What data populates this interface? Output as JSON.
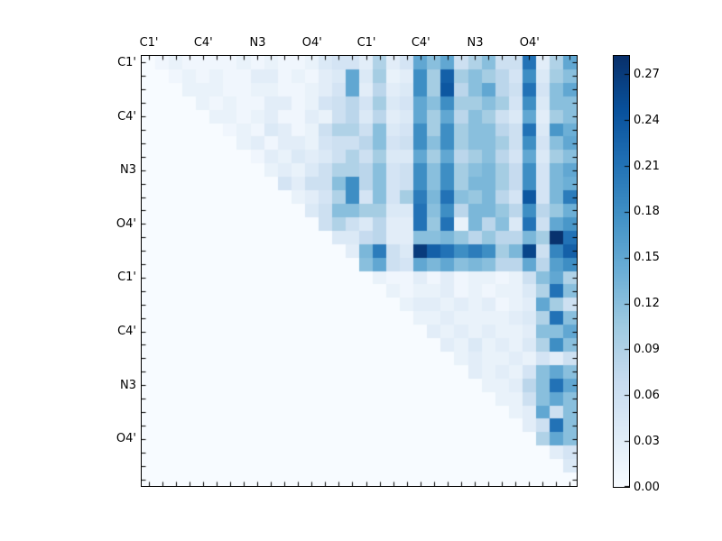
{
  "chart_data": {
    "type": "heatmap",
    "title": "",
    "xlabel": "",
    "ylabel": "",
    "n": 32,
    "x_tick_labels": [
      "C1'",
      "C4'",
      "N3",
      "O4'",
      "C1'",
      "C4'",
      "N3",
      "O4'"
    ],
    "y_tick_labels": [
      "C1'",
      "C4'",
      "N3",
      "O4'",
      "C1'",
      "C4'",
      "N3",
      "O4'"
    ],
    "tick_label_rows": [
      0,
      4,
      8,
      12,
      16,
      20,
      24,
      28
    ],
    "vmin": 0.0,
    "vmax": 0.282,
    "colormap": "Blues",
    "colormap_anchors": [
      "#f7fbff",
      "#deebf7",
      "#c6dbef",
      "#9ecae1",
      "#6baed6",
      "#4292c6",
      "#2171b5",
      "#08519c",
      "#08306b"
    ],
    "colorbar_tick_values": [
      0.0,
      0.03,
      0.06,
      0.09,
      0.12,
      0.15,
      0.18,
      0.21,
      0.24,
      0.27
    ],
    "colorbar_tick_labels": [
      "0.00",
      "0.03",
      "0.06",
      "0.09",
      "0.12",
      "0.15",
      "0.18",
      "0.21",
      "0.24",
      "0.27"
    ],
    "legend": "none",
    "grid": false,
    "matrix": [
      [
        0,
        0.01,
        0.02,
        0.01,
        0.01,
        0.01,
        0.01,
        0.02,
        0.01,
        0.02,
        0.01,
        0.01,
        0.02,
        0.04,
        0.05,
        0.05,
        0.03,
        0.09,
        0.03,
        0.05,
        0.15,
        0.12,
        0.15,
        0.06,
        0.09,
        0.12,
        0.06,
        0.06,
        0.21,
        0.03,
        0.09,
        0.15
      ],
      [
        0,
        0,
        0.01,
        0.02,
        0.01,
        0.02,
        0.01,
        0.01,
        0.03,
        0.03,
        0.01,
        0.02,
        0.01,
        0.03,
        0.04,
        0.15,
        0.04,
        0.1,
        0.02,
        0.03,
        0.18,
        0.1,
        0.23,
        0.1,
        0.12,
        0.1,
        0.08,
        0.05,
        0.18,
        0.04,
        0.1,
        0.12
      ],
      [
        0,
        0,
        0,
        0.02,
        0.02,
        0.02,
        0.01,
        0.01,
        0.02,
        0.02,
        0.01,
        0.01,
        0.02,
        0.03,
        0.05,
        0.15,
        0.03,
        0.08,
        0.03,
        0.04,
        0.18,
        0.1,
        0.24,
        0.08,
        0.12,
        0.15,
        0.08,
        0.06,
        0.21,
        0.05,
        0.12,
        0.15
      ],
      [
        0,
        0,
        0,
        0,
        0.02,
        0.01,
        0.02,
        0.01,
        0.01,
        0.03,
        0.03,
        0.01,
        0.02,
        0.05,
        0.06,
        0.08,
        0.05,
        0.1,
        0.04,
        0.05,
        0.15,
        0.12,
        0.18,
        0.1,
        0.1,
        0.12,
        0.1,
        0.05,
        0.18,
        0.04,
        0.12,
        0.12
      ],
      [
        0,
        0,
        0,
        0,
        0,
        0.02,
        0.02,
        0.01,
        0.02,
        0.03,
        0.01,
        0.01,
        0.03,
        0.02,
        0.06,
        0.08,
        0.04,
        0.08,
        0.03,
        0.04,
        0.15,
        0.1,
        0.15,
        0.08,
        0.12,
        0.1,
        0.06,
        0.04,
        0.15,
        0.03,
        0.1,
        0.12
      ],
      [
        0,
        0,
        0,
        0,
        0,
        0,
        0.01,
        0.02,
        0.01,
        0.04,
        0.03,
        0.01,
        0.02,
        0.06,
        0.09,
        0.09,
        0.06,
        0.12,
        0.04,
        0.05,
        0.18,
        0.1,
        0.18,
        0.1,
        0.12,
        0.12,
        0.08,
        0.06,
        0.21,
        0.04,
        0.17,
        0.14
      ],
      [
        0,
        0,
        0,
        0,
        0,
        0,
        0,
        0.02,
        0.03,
        0.01,
        0.03,
        0.03,
        0.02,
        0.05,
        0.06,
        0.06,
        0.08,
        0.12,
        0.05,
        0.06,
        0.18,
        0.12,
        0.18,
        0.1,
        0.12,
        0.12,
        0.1,
        0.06,
        0.18,
        0.05,
        0.12,
        0.15
      ],
      [
        0,
        0,
        0,
        0,
        0,
        0,
        0,
        0,
        0.01,
        0.03,
        0.02,
        0.04,
        0.03,
        0.04,
        0.06,
        0.09,
        0.06,
        0.1,
        0.04,
        0.04,
        0.15,
        0.1,
        0.15,
        0.08,
        0.1,
        0.12,
        0.08,
        0.05,
        0.15,
        0.04,
        0.1,
        0.12
      ],
      [
        0,
        0,
        0,
        0,
        0,
        0,
        0,
        0,
        0,
        0.02,
        0.03,
        0.02,
        0.04,
        0.06,
        0.09,
        0.09,
        0.08,
        0.12,
        0.05,
        0.06,
        0.18,
        0.12,
        0.18,
        0.1,
        0.12,
        0.13,
        0.1,
        0.07,
        0.18,
        0.05,
        0.13,
        0.15
      ],
      [
        0,
        0,
        0,
        0,
        0,
        0,
        0,
        0,
        0,
        0,
        0.05,
        0.03,
        0.06,
        0.06,
        0.12,
        0.18,
        0.08,
        0.12,
        0.05,
        0.06,
        0.18,
        0.12,
        0.18,
        0.1,
        0.13,
        0.13,
        0.1,
        0.07,
        0.18,
        0.05,
        0.13,
        0.14
      ],
      [
        0,
        0,
        0,
        0,
        0,
        0,
        0,
        0,
        0,
        0,
        0,
        0.02,
        0.03,
        0.05,
        0.09,
        0.18,
        0.05,
        0.12,
        0.05,
        0.1,
        0.2,
        0.13,
        0.21,
        0.12,
        0.11,
        0.13,
        0.08,
        0.05,
        0.24,
        0.05,
        0.13,
        0.2
      ],
      [
        0,
        0,
        0,
        0,
        0,
        0,
        0,
        0,
        0,
        0,
        0,
        0,
        0.04,
        0.06,
        0.12,
        0.12,
        0.1,
        0.1,
        0.04,
        0.04,
        0.21,
        0.12,
        0.18,
        0.08,
        0.13,
        0.13,
        0.11,
        0.08,
        0.18,
        0.08,
        0.11,
        0.14
      ],
      [
        0,
        0,
        0,
        0,
        0,
        0,
        0,
        0,
        0,
        0,
        0,
        0,
        0,
        0.06,
        0.09,
        0.06,
        0.04,
        0.08,
        0.03,
        0.03,
        0.21,
        0.11,
        0.21,
        0.02,
        0.13,
        0.08,
        0.12,
        0.04,
        0.21,
        0.06,
        0.15,
        0.17
      ],
      [
        0,
        0,
        0,
        0,
        0,
        0,
        0,
        0,
        0,
        0,
        0,
        0,
        0,
        0,
        0.04,
        0.04,
        0.07,
        0.08,
        0.03,
        0.03,
        0.12,
        0.12,
        0.13,
        0.11,
        0.08,
        0.11,
        0.08,
        0.08,
        0.13,
        0.1,
        0.28,
        0.21
      ],
      [
        0,
        0,
        0,
        0,
        0,
        0,
        0,
        0,
        0,
        0,
        0,
        0,
        0,
        0,
        0,
        0.03,
        0.13,
        0.2,
        0.06,
        0.04,
        0.27,
        0.23,
        0.21,
        0.18,
        0.2,
        0.18,
        0.1,
        0.13,
        0.26,
        0.06,
        0.19,
        0.23
      ],
      [
        0,
        0,
        0,
        0,
        0,
        0,
        0,
        0,
        0,
        0,
        0,
        0,
        0,
        0,
        0,
        0,
        0.12,
        0.15,
        0.06,
        0.05,
        0.15,
        0.13,
        0.15,
        0.12,
        0.13,
        0.12,
        0.08,
        0.08,
        0.15,
        0.08,
        0.16,
        0.18
      ],
      [
        0,
        0,
        0,
        0,
        0,
        0,
        0,
        0,
        0,
        0,
        0,
        0,
        0,
        0,
        0,
        0,
        0,
        0.02,
        0.01,
        0.01,
        0.03,
        0.01,
        0.03,
        0.01,
        0.02,
        0.02,
        0.01,
        0.02,
        0.06,
        0.12,
        0.15,
        0.09
      ],
      [
        0,
        0,
        0,
        0,
        0,
        0,
        0,
        0,
        0,
        0,
        0,
        0,
        0,
        0,
        0,
        0,
        0,
        0,
        0.02,
        0.01,
        0.02,
        0.02,
        0.03,
        0.01,
        0.02,
        0.01,
        0.02,
        0.02,
        0.04,
        0.09,
        0.21,
        0.12
      ],
      [
        0,
        0,
        0,
        0,
        0,
        0,
        0,
        0,
        0,
        0,
        0,
        0,
        0,
        0,
        0,
        0,
        0,
        0,
        0,
        0.02,
        0.03,
        0.03,
        0.02,
        0.03,
        0.02,
        0.03,
        0.01,
        0.02,
        0.03,
        0.15,
        0.1,
        0.06
      ],
      [
        0,
        0,
        0,
        0,
        0,
        0,
        0,
        0,
        0,
        0,
        0,
        0,
        0,
        0,
        0,
        0,
        0,
        0,
        0,
        0,
        0.02,
        0.02,
        0.03,
        0.02,
        0.02,
        0.02,
        0.02,
        0.03,
        0.04,
        0.09,
        0.21,
        0.12
      ],
      [
        0,
        0,
        0,
        0,
        0,
        0,
        0,
        0,
        0,
        0,
        0,
        0,
        0,
        0,
        0,
        0,
        0,
        0,
        0,
        0,
        0,
        0.03,
        0.02,
        0.03,
        0.02,
        0.03,
        0.02,
        0.02,
        0.03,
        0.12,
        0.12,
        0.15
      ],
      [
        0,
        0,
        0,
        0,
        0,
        0,
        0,
        0,
        0,
        0,
        0,
        0,
        0,
        0,
        0,
        0,
        0,
        0,
        0,
        0,
        0,
        0,
        0.03,
        0.02,
        0.04,
        0.02,
        0.03,
        0.02,
        0.04,
        0.09,
        0.18,
        0.12
      ],
      [
        0,
        0,
        0,
        0,
        0,
        0,
        0,
        0,
        0,
        0,
        0,
        0,
        0,
        0,
        0,
        0,
        0,
        0,
        0,
        0,
        0,
        0,
        0,
        0.02,
        0.03,
        0.02,
        0.02,
        0.03,
        0.02,
        0.05,
        0.03,
        0.06
      ],
      [
        0,
        0,
        0,
        0,
        0,
        0,
        0,
        0,
        0,
        0,
        0,
        0,
        0,
        0,
        0,
        0,
        0,
        0,
        0,
        0,
        0,
        0,
        0,
        0,
        0.03,
        0.02,
        0.03,
        0.02,
        0.05,
        0.12,
        0.15,
        0.12
      ],
      [
        0,
        0,
        0,
        0,
        0,
        0,
        0,
        0,
        0,
        0,
        0,
        0,
        0,
        0,
        0,
        0,
        0,
        0,
        0,
        0,
        0,
        0,
        0,
        0,
        0,
        0.02,
        0.02,
        0.03,
        0.08,
        0.12,
        0.21,
        0.15
      ],
      [
        0,
        0,
        0,
        0,
        0,
        0,
        0,
        0,
        0,
        0,
        0,
        0,
        0,
        0,
        0,
        0,
        0,
        0,
        0,
        0,
        0,
        0,
        0,
        0,
        0,
        0,
        0.02,
        0.02,
        0.06,
        0.12,
        0.15,
        0.12
      ],
      [
        0,
        0,
        0,
        0,
        0,
        0,
        0,
        0,
        0,
        0,
        0,
        0,
        0,
        0,
        0,
        0,
        0,
        0,
        0,
        0,
        0,
        0,
        0,
        0,
        0,
        0,
        0,
        0.02,
        0.03,
        0.15,
        0.06,
        0.12
      ],
      [
        0,
        0,
        0,
        0,
        0,
        0,
        0,
        0,
        0,
        0,
        0,
        0,
        0,
        0,
        0,
        0,
        0,
        0,
        0,
        0,
        0,
        0,
        0,
        0,
        0,
        0,
        0,
        0,
        0.03,
        0.06,
        0.21,
        0.12
      ],
      [
        0,
        0,
        0,
        0,
        0,
        0,
        0,
        0,
        0,
        0,
        0,
        0,
        0,
        0,
        0,
        0,
        0,
        0,
        0,
        0,
        0,
        0,
        0,
        0,
        0,
        0,
        0,
        0,
        0,
        0.09,
        0.15,
        0.12
      ],
      [
        0,
        0,
        0,
        0,
        0,
        0,
        0,
        0,
        0,
        0,
        0,
        0,
        0,
        0,
        0,
        0,
        0,
        0,
        0,
        0,
        0,
        0,
        0,
        0,
        0,
        0,
        0,
        0,
        0,
        0,
        0.03,
        0.05
      ],
      [
        0,
        0,
        0,
        0,
        0,
        0,
        0,
        0,
        0,
        0,
        0,
        0,
        0,
        0,
        0,
        0,
        0,
        0,
        0,
        0,
        0,
        0,
        0,
        0,
        0,
        0,
        0,
        0,
        0,
        0,
        0,
        0.04
      ],
      [
        0,
        0,
        0,
        0,
        0,
        0,
        0,
        0,
        0,
        0,
        0,
        0,
        0,
        0,
        0,
        0,
        0,
        0,
        0,
        0,
        0,
        0,
        0,
        0,
        0,
        0,
        0,
        0,
        0,
        0,
        0,
        0
      ]
    ]
  }
}
